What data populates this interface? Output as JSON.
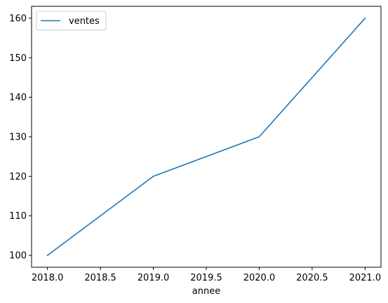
{
  "chart_data": {
    "type": "line",
    "title": "",
    "xlabel": "annee",
    "ylabel": "",
    "x": [
      2018.0,
      2019.0,
      2020.0,
      2021.0
    ],
    "series": [
      {
        "name": "ventes",
        "values": [
          100,
          120,
          130,
          160
        ],
        "color": "#1f77b4"
      }
    ],
    "xlim": [
      2017.85,
      2021.15
    ],
    "ylim": [
      97,
      163
    ],
    "xticks": [
      2018.0,
      2018.5,
      2019.0,
      2019.5,
      2020.0,
      2020.5,
      2021.0
    ],
    "xtick_labels": [
      "2018.0",
      "2018.5",
      "2019.0",
      "2019.5",
      "2020.0",
      "2020.5",
      "2021.0"
    ],
    "yticks": [
      100,
      110,
      120,
      130,
      140,
      150,
      160
    ],
    "ytick_labels": [
      "100",
      "110",
      "120",
      "130",
      "140",
      "150",
      "160"
    ],
    "grid": false,
    "legend_position": "top-left"
  }
}
